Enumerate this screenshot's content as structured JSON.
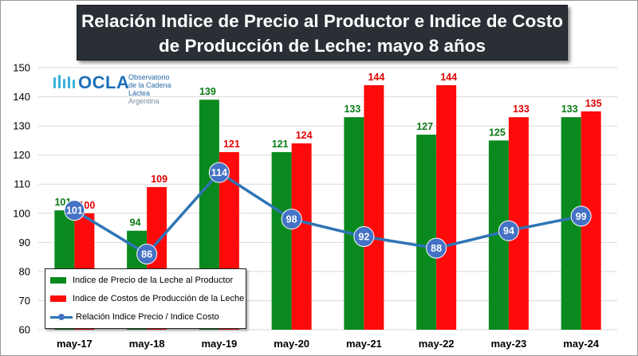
{
  "title_lines": [
    "Relación Indice de Precio al Productor e Indice de Costo",
    "de Producción de Leche: mayo 8 años"
  ],
  "logo": {
    "name": "OCLA",
    "subtitle_lines": [
      "Observatorio",
      "de la Cadena Láctea",
      "Argentina"
    ]
  },
  "chart_data": {
    "type": "bar",
    "title": "Relación Indice de Precio al Productor e Indice de Costo de Producción de Leche: mayo 8 años",
    "categories": [
      "may-17",
      "may-18",
      "may-19",
      "may-20",
      "may-21",
      "may-22",
      "may-23",
      "may-24"
    ],
    "ylim": [
      60,
      150
    ],
    "yticks": [
      60,
      70,
      80,
      90,
      100,
      110,
      120,
      130,
      140,
      150
    ],
    "grid": true,
    "legend_position": "bottom-left",
    "series": [
      {
        "name": "Indice de Precio de la Leche al Productor",
        "type": "bar",
        "color": "#0a8a1e",
        "label_color": "#0a7a14",
        "values": [
          101,
          94,
          139,
          121,
          133,
          127,
          125,
          133
        ]
      },
      {
        "name": "Indice de Costos de Producción de la Leche",
        "type": "bar",
        "color": "#ff0a0a",
        "label_color": "#e00000",
        "values": [
          100,
          109,
          121,
          124,
          144,
          144,
          133,
          135
        ]
      },
      {
        "name": "Relación Indice Precio / Indice Costo",
        "type": "line",
        "color": "#2e74b5",
        "marker_color": "#4472c4",
        "values": [
          101,
          86,
          114,
          98,
          92,
          88,
          94,
          99
        ]
      }
    ]
  }
}
